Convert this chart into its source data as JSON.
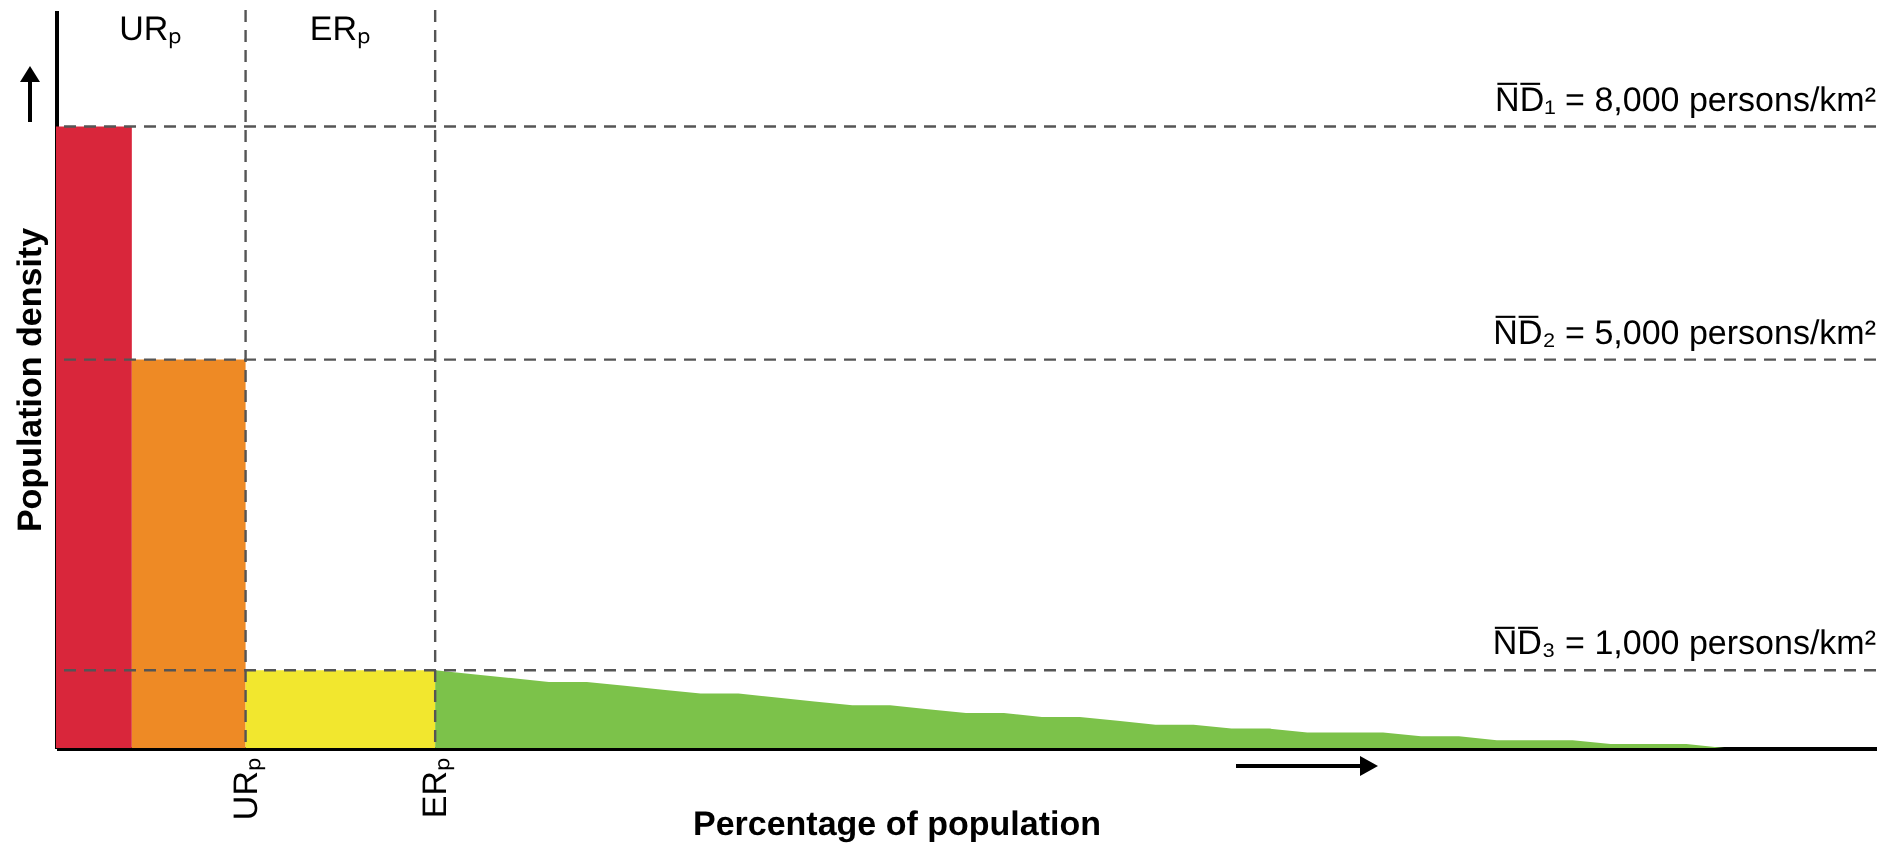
{
  "chart_data": {
    "type": "area",
    "xlabel": "Percentage of population",
    "ylabel": "Population density",
    "tick_labels": "x",
    "ylim": [
      0,
      9500
    ],
    "categories": [
      null,
      null,
      null,
      null,
      null,
      "URₚ",
      null,
      null,
      null,
      null,
      "ERₚ",
      null,
      null,
      null,
      null,
      null,
      null,
      null,
      null,
      null,
      null,
      null,
      null,
      null,
      null,
      null,
      null,
      null,
      null,
      null,
      null,
      null,
      null,
      null,
      null,
      null,
      null,
      null,
      null,
      null,
      null,
      null,
      null,
      null,
      null,
      null,
      null,
      null,
      null
    ],
    "series": [
      {
        "color": "#d9263b",
        "values": [
          8000,
          8000,
          8000,
          null,
          null,
          null,
          null,
          null,
          null,
          null,
          null,
          null,
          null,
          null,
          null,
          null,
          null,
          null,
          null,
          null,
          null,
          null,
          null,
          null,
          null,
          null,
          null,
          null,
          null,
          null,
          null,
          null,
          null,
          null,
          null,
          null,
          null,
          null,
          null,
          null,
          null,
          null,
          null,
          null,
          null,
          null,
          null,
          null,
          null
        ]
      },
      {
        "color": "#ee8a25",
        "values": [
          null,
          null,
          5000,
          5000,
          5000,
          5000,
          null,
          null,
          null,
          null,
          null,
          null,
          null,
          null,
          null,
          null,
          null,
          null,
          null,
          null,
          null,
          null,
          null,
          null,
          null,
          null,
          null,
          null,
          null,
          null,
          null,
          null,
          null,
          null,
          null,
          null,
          null,
          null,
          null,
          null,
          null,
          null,
          null,
          null,
          null,
          null,
          null,
          null,
          null
        ]
      },
      {
        "color": "#f2e72e",
        "values": [
          null,
          null,
          null,
          null,
          null,
          1000,
          1000,
          1000,
          1000,
          1000,
          1000,
          null,
          null,
          null,
          null,
          null,
          null,
          null,
          null,
          null,
          null,
          null,
          null,
          null,
          null,
          null,
          null,
          null,
          null,
          null,
          null,
          null,
          null,
          null,
          null,
          null,
          null,
          null,
          null,
          null,
          null,
          null,
          null,
          null,
          null,
          null,
          null,
          null,
          null
        ]
      },
      {
        "color": "#7cc24a",
        "values": [
          null,
          null,
          null,
          null,
          null,
          null,
          null,
          null,
          null,
          null,
          1000,
          950,
          900,
          850,
          850,
          800,
          750,
          700,
          700,
          650,
          600,
          550,
          550,
          500,
          450,
          450,
          400,
          400,
          350,
          300,
          300,
          250,
          250,
          200,
          200,
          200,
          150,
          150,
          100,
          100,
          100,
          50,
          50,
          50,
          0,
          0,
          0,
          0,
          0
        ]
      }
    ],
    "ref_lines": [
      {
        "axis": "y",
        "value": 8000,
        "label": "N̅D̅₁ = 8,000 persons/km²"
      },
      {
        "axis": "y",
        "value": 5000,
        "label": "N̅D̅₂ = 5,000 persons/km²"
      },
      {
        "axis": "y",
        "value": 1000,
        "label": "N̅D̅₃ = 1,000 persons/km²"
      },
      {
        "axis": "x",
        "value": "URₚ"
      },
      {
        "axis": "x",
        "value": "ERₚ"
      }
    ],
    "annotations": [
      "URₚ",
      "ERₚ"
    ]
  }
}
